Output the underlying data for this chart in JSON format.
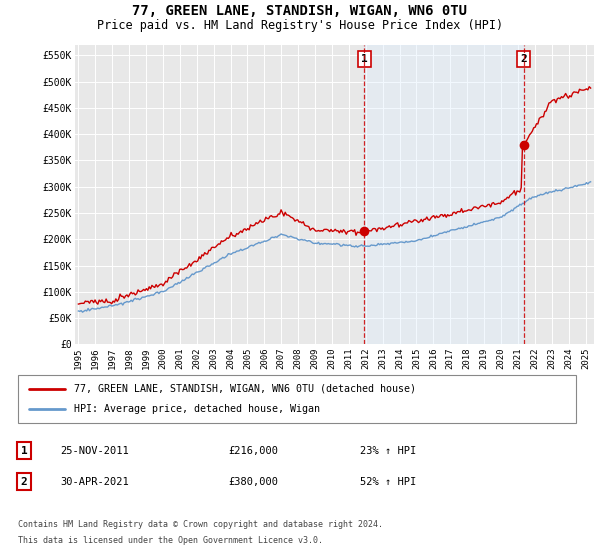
{
  "title": "77, GREEN LANE, STANDISH, WIGAN, WN6 0TU",
  "subtitle": "Price paid vs. HM Land Registry's House Price Index (HPI)",
  "title_fontsize": 10,
  "subtitle_fontsize": 8.5,
  "ylabel_ticks": [
    "£0",
    "£50K",
    "£100K",
    "£150K",
    "£200K",
    "£250K",
    "£300K",
    "£350K",
    "£400K",
    "£450K",
    "£500K",
    "£550K"
  ],
  "ytick_values": [
    0,
    50000,
    100000,
    150000,
    200000,
    250000,
    300000,
    350000,
    400000,
    450000,
    500000,
    550000
  ],
  "ylim": [
    0,
    570000
  ],
  "xlim_start": 1994.8,
  "xlim_end": 2025.5,
  "background_color": "#ffffff",
  "plot_bg_color": "#e8e8e8",
  "grid_color": "#ffffff",
  "shade_color": "#ddeeff",
  "hpi_color": "#6699cc",
  "price_color": "#cc0000",
  "dashed_line_color": "#cc0000",
  "transaction_1_x": 2011.92,
  "transaction_1_y": 216000,
  "transaction_1_label": "1",
  "transaction_1_date": "25-NOV-2011",
  "transaction_1_price": "£216,000",
  "transaction_1_hpi": "23% ↑ HPI",
  "transaction_2_x": 2021.33,
  "transaction_2_y": 380000,
  "transaction_2_label": "2",
  "transaction_2_date": "30-APR-2021",
  "transaction_2_price": "£380,000",
  "transaction_2_hpi": "52% ↑ HPI",
  "legend_label_1": "77, GREEN LANE, STANDISH, WIGAN, WN6 0TU (detached house)",
  "legend_label_2": "HPI: Average price, detached house, Wigan",
  "footer_line1": "Contains HM Land Registry data © Crown copyright and database right 2024.",
  "footer_line2": "This data is licensed under the Open Government Licence v3.0.",
  "xtick_years": [
    1995,
    1996,
    1997,
    1998,
    1999,
    2000,
    2001,
    2002,
    2003,
    2004,
    2005,
    2006,
    2007,
    2008,
    2009,
    2010,
    2011,
    2012,
    2013,
    2014,
    2015,
    2016,
    2017,
    2018,
    2019,
    2020,
    2021,
    2022,
    2023,
    2024,
    2025
  ]
}
